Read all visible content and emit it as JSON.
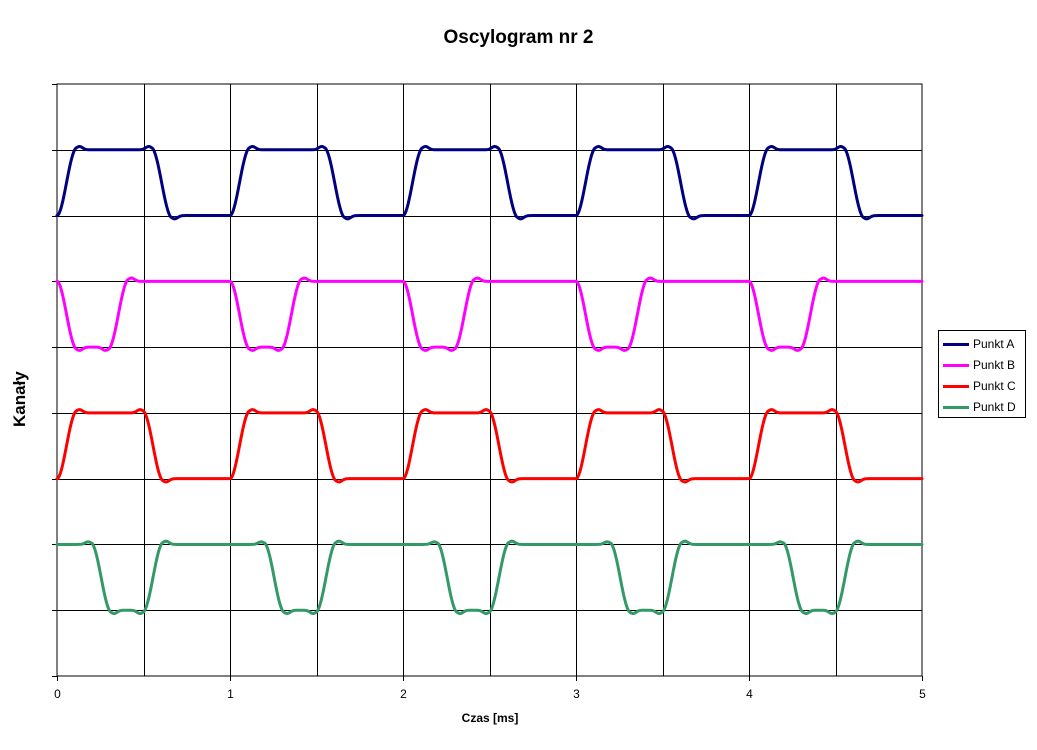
{
  "chart_data": {
    "type": "line",
    "title": "Oscylogram nr 2",
    "xlabel": "Czas [ms]",
    "ylabel": "Kanały",
    "xlim": [
      0,
      5
    ],
    "ylim": [
      0,
      9
    ],
    "x_ticks": [
      "0",
      "1",
      "2",
      "3",
      "4",
      "5"
    ],
    "grid": true,
    "legend": "right",
    "period": 1,
    "series": [
      {
        "name": "Punkt A",
        "color": "#000080",
        "baseline": 7,
        "amplitude": 1,
        "pulse_start": 0.0,
        "pulse_end": 0.55
      },
      {
        "name": "Punkt B",
        "color": "#ff00ff",
        "baseline": 6,
        "amplitude": -1,
        "pulse_start": 0.0,
        "pulse_end": 0.3
      },
      {
        "name": "Punkt C",
        "color": "#ff0000",
        "baseline": 3,
        "amplitude": 1,
        "pulse_start": 0.0,
        "pulse_end": 0.5
      },
      {
        "name": "Punkt D",
        "color": "#339966",
        "baseline": 2,
        "amplitude": -1,
        "pulse_start": 0.2,
        "pulse_end": 0.5
      }
    ]
  }
}
